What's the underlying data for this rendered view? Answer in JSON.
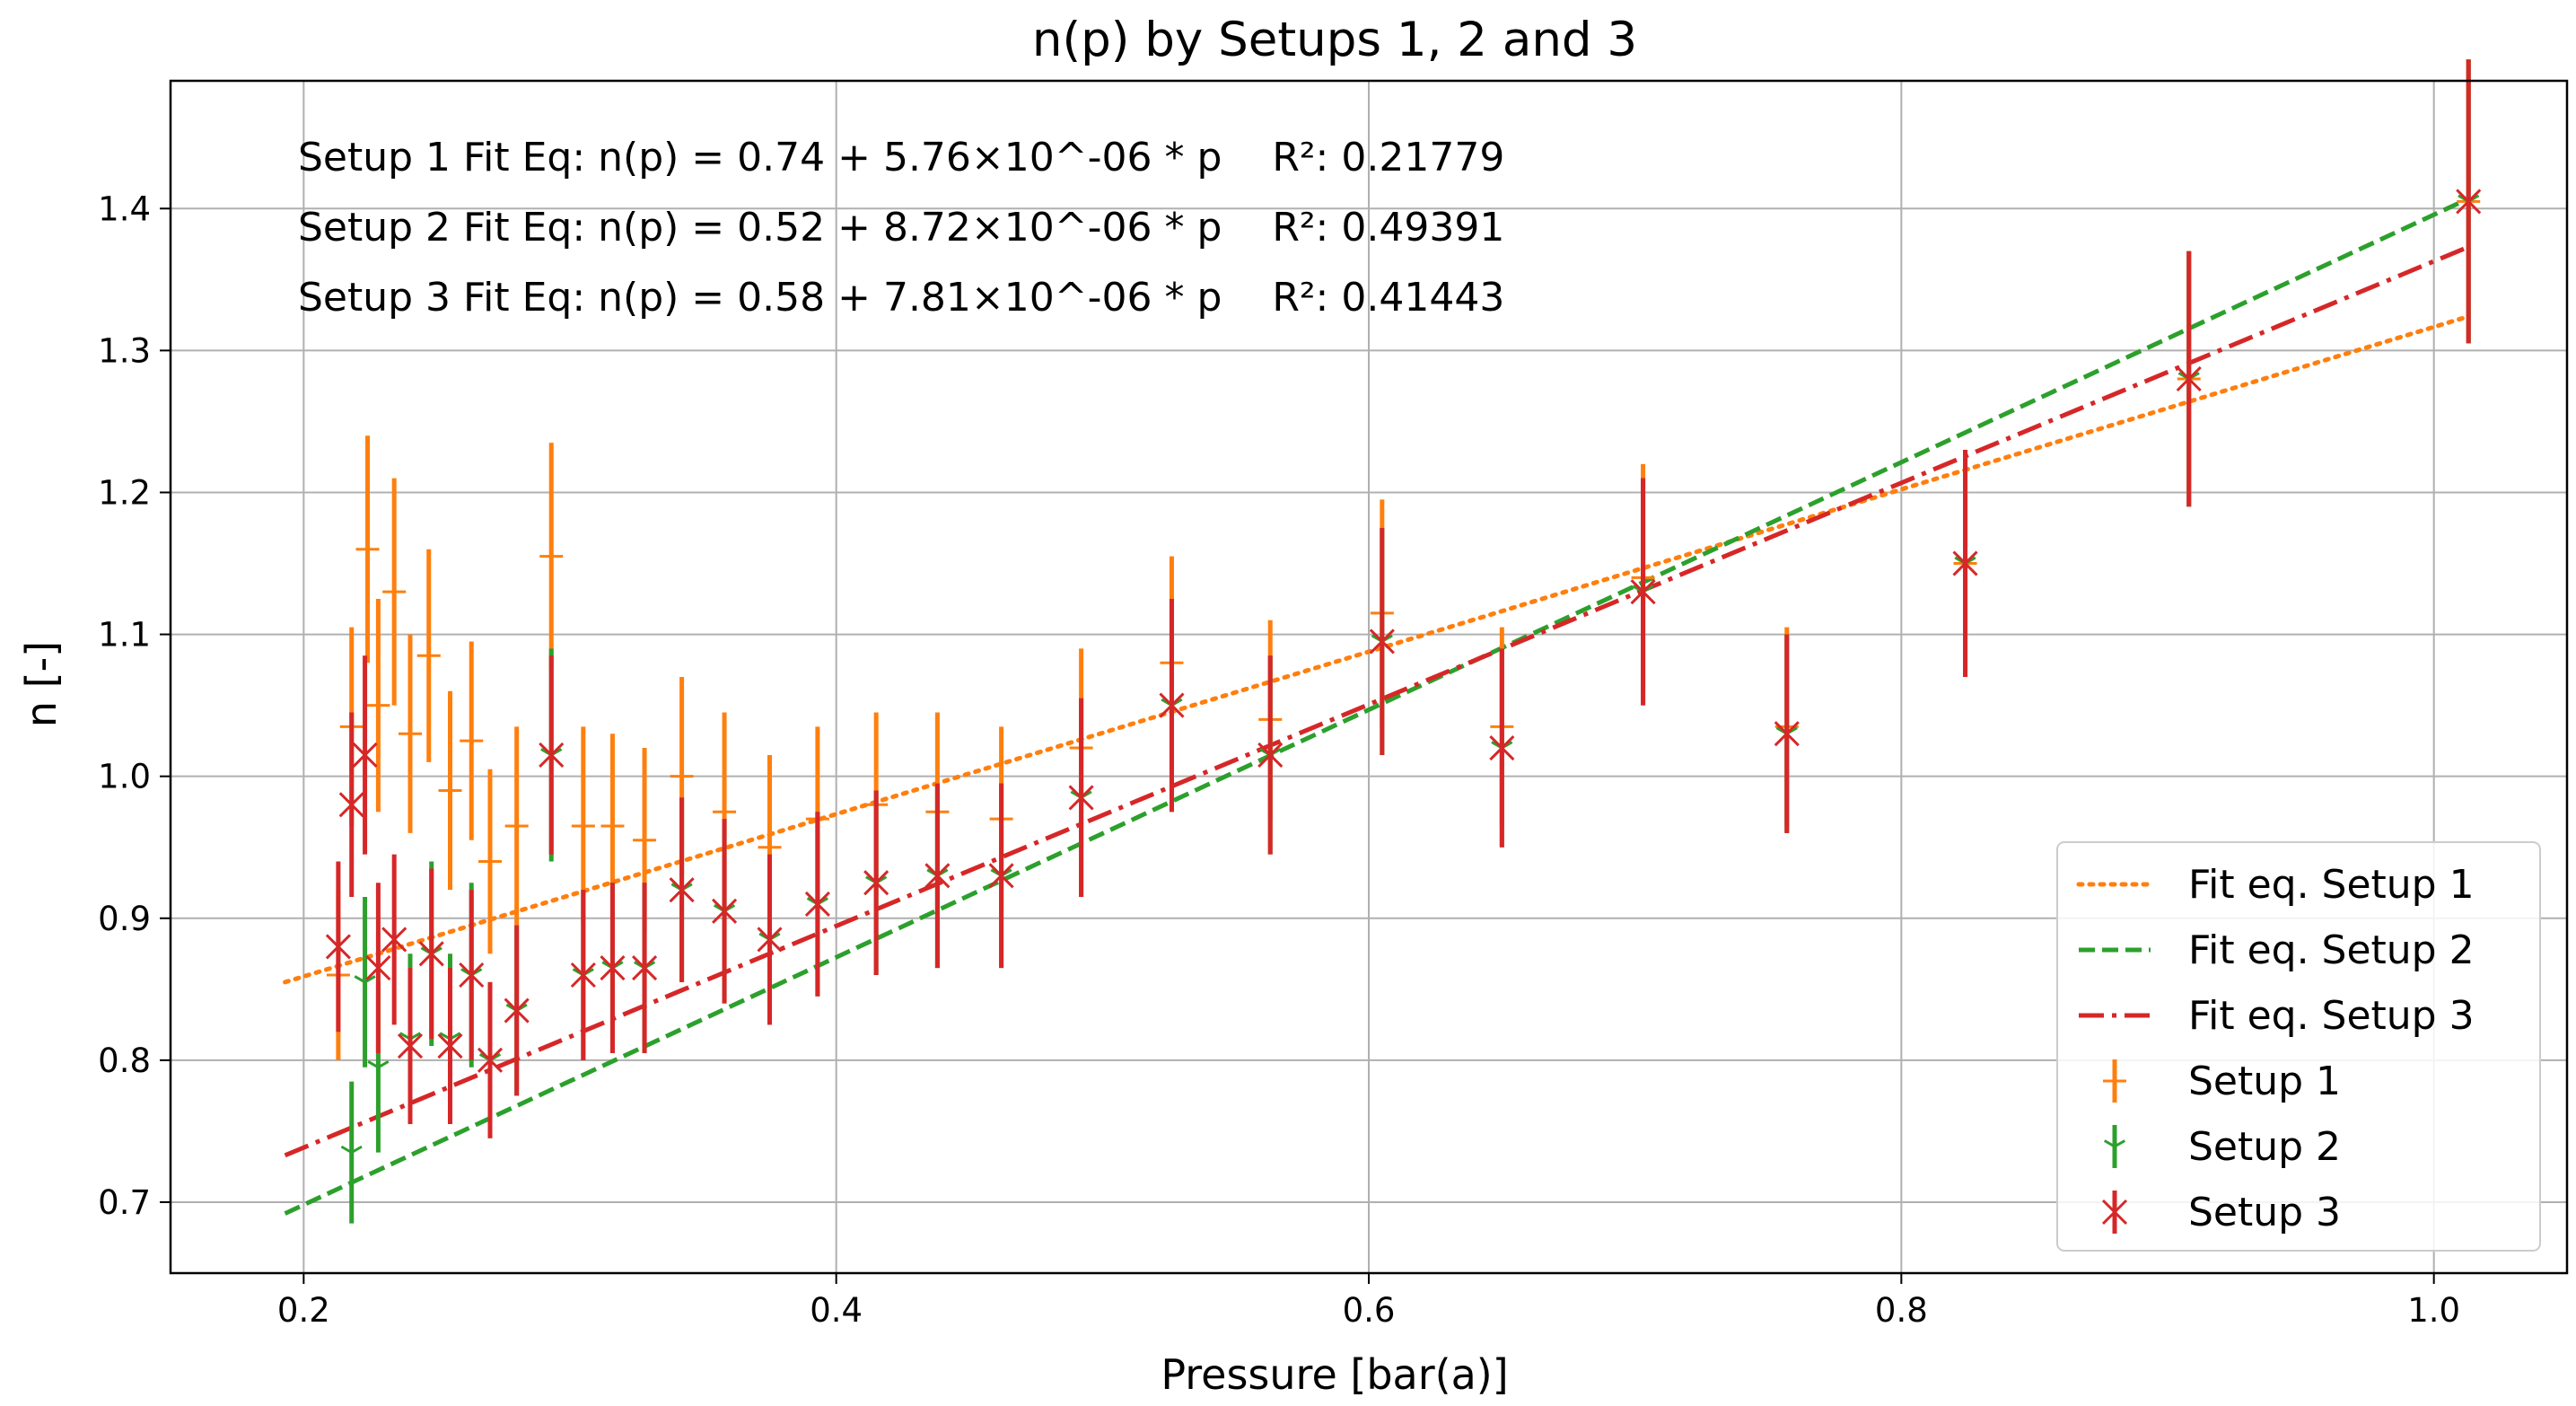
{
  "chart_data": {
    "type": "scatter",
    "title": "n(p) by Setups 1, 2 and 3",
    "xlabel": "Pressure [bar(a)]",
    "ylabel": "n [-]",
    "xlim": [
      0.15,
      1.05
    ],
    "ylim": [
      0.65,
      1.49
    ],
    "xticks": [
      0.2,
      0.4,
      0.6,
      0.8,
      1.0
    ],
    "yticks": [
      0.7,
      0.8,
      0.9,
      1.0,
      1.1,
      1.2,
      1.3,
      1.4
    ],
    "grid": true,
    "legend_position": "lower-right",
    "annotations": [
      "Setup 1 Fit Eq: n(p) = 0.74 + 5.76×10^-06 * p    R²: 0.21779",
      "Setup 2 Fit Eq: n(p) = 0.52 + 8.72×10^-06 * p    R²: 0.49391",
      "Setup 3 Fit Eq: n(p) = 0.58 + 7.81×10^-06 * p    R²: 0.41443"
    ],
    "fits": [
      {
        "name": "Fit eq. Setup 1",
        "color": "#ff7f0e",
        "dash": "dotted",
        "x": [
          0.193,
          1.013
        ],
        "y": [
          0.855,
          1.324
        ]
      },
      {
        "name": "Fit eq. Setup 2",
        "color": "#2ca02c",
        "dash": "dashed",
        "x": [
          0.193,
          1.013
        ],
        "y": [
          0.692,
          1.407
        ]
      },
      {
        "name": "Fit eq. Setup 3",
        "color": "#d62728",
        "dash": "dashdot",
        "x": [
          0.193,
          1.013
        ],
        "y": [
          0.733,
          1.373
        ]
      }
    ],
    "series": [
      {
        "name": "Setup 1",
        "color": "#ff7f0e",
        "marker": "plus",
        "x": [
          0.213,
          0.218,
          0.224,
          0.228,
          0.234,
          0.24,
          0.247,
          0.255,
          0.263,
          0.27,
          0.28,
          0.293,
          0.305,
          0.316,
          0.328,
          0.342,
          0.358,
          0.375,
          0.393,
          0.415,
          0.438,
          0.462,
          0.492,
          0.526,
          0.563,
          0.605,
          0.65,
          0.703,
          0.757,
          0.824,
          0.908,
          1.013
        ],
        "y": [
          0.86,
          1.035,
          1.16,
          1.05,
          1.13,
          1.03,
          1.085,
          0.99,
          1.025,
          0.94,
          0.965,
          1.155,
          0.965,
          0.965,
          0.955,
          1.0,
          0.975,
          0.95,
          0.97,
          0.98,
          0.975,
          0.97,
          1.02,
          1.08,
          1.04,
          1.115,
          1.035,
          1.14,
          1.035,
          1.15,
          1.28,
          1.405
        ],
        "err": [
          0.06,
          0.07,
          0.08,
          0.075,
          0.08,
          0.07,
          0.075,
          0.07,
          0.07,
          0.065,
          0.07,
          0.08,
          0.07,
          0.065,
          0.065,
          0.07,
          0.07,
          0.065,
          0.065,
          0.065,
          0.07,
          0.065,
          0.07,
          0.075,
          0.07,
          0.08,
          0.07,
          0.08,
          0.07,
          0.08,
          0.09,
          0.1
        ]
      },
      {
        "name": "Setup 2",
        "color": "#2ca02c",
        "marker": "tri",
        "x": [
          0.218,
          0.223,
          0.228,
          0.24,
          0.248,
          0.255,
          0.263,
          0.27,
          0.28,
          0.293,
          0.305,
          0.316,
          0.328,
          0.342,
          0.358,
          0.375,
          0.393,
          0.415,
          0.438,
          0.462,
          0.492,
          0.526,
          0.563,
          0.605,
          0.65,
          0.703,
          0.757,
          0.824,
          0.908,
          1.013
        ],
        "y": [
          0.735,
          0.855,
          0.795,
          0.815,
          0.875,
          0.815,
          0.86,
          0.8,
          0.835,
          1.015,
          0.86,
          0.865,
          0.865,
          0.92,
          0.905,
          0.885,
          0.91,
          0.925,
          0.93,
          0.93,
          0.985,
          1.05,
          1.015,
          1.095,
          1.02,
          1.13,
          1.03,
          1.15,
          1.28,
          1.405
        ],
        "err": [
          0.05,
          0.06,
          0.06,
          0.06,
          0.065,
          0.06,
          0.065,
          0.055,
          0.06,
          0.075,
          0.06,
          0.06,
          0.06,
          0.065,
          0.065,
          0.06,
          0.065,
          0.065,
          0.065,
          0.065,
          0.07,
          0.075,
          0.07,
          0.08,
          0.07,
          0.08,
          0.07,
          0.08,
          0.09,
          0.1
        ]
      },
      {
        "name": "Setup 3",
        "color": "#d62728",
        "marker": "x",
        "x": [
          0.213,
          0.218,
          0.223,
          0.228,
          0.234,
          0.24,
          0.248,
          0.255,
          0.263,
          0.27,
          0.28,
          0.293,
          0.305,
          0.316,
          0.328,
          0.342,
          0.358,
          0.375,
          0.393,
          0.415,
          0.438,
          0.462,
          0.492,
          0.526,
          0.563,
          0.605,
          0.65,
          0.703,
          0.757,
          0.824,
          0.908,
          1.013
        ],
        "y": [
          0.88,
          0.98,
          1.015,
          0.865,
          0.885,
          0.81,
          0.875,
          0.81,
          0.86,
          0.8,
          0.835,
          1.015,
          0.86,
          0.865,
          0.865,
          0.92,
          0.905,
          0.885,
          0.91,
          0.925,
          0.93,
          0.93,
          0.985,
          1.05,
          1.015,
          1.095,
          1.02,
          1.13,
          1.03,
          1.15,
          1.28,
          1.405
        ],
        "err": [
          0.06,
          0.065,
          0.07,
          0.06,
          0.06,
          0.055,
          0.06,
          0.055,
          0.06,
          0.055,
          0.06,
          0.07,
          0.06,
          0.06,
          0.06,
          0.065,
          0.065,
          0.06,
          0.065,
          0.065,
          0.065,
          0.065,
          0.07,
          0.075,
          0.07,
          0.08,
          0.07,
          0.08,
          0.07,
          0.08,
          0.09,
          0.1
        ]
      }
    ]
  }
}
